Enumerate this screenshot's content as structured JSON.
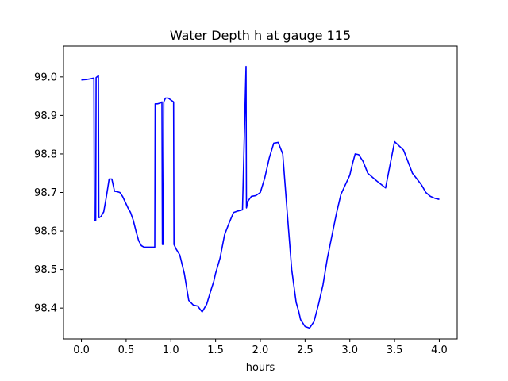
{
  "chart_data": {
    "type": "line",
    "title": "Water Depth h at gauge 115",
    "xlabel": "hours",
    "ylabel": "",
    "xlim": [
      -0.2,
      4.2
    ],
    "ylim": [
      98.32,
      99.08
    ],
    "xticks": [
      0.0,
      0.5,
      1.0,
      1.5,
      2.0,
      2.5,
      3.0,
      3.5,
      4.0
    ],
    "xtick_labels": [
      "0.0",
      "0.5",
      "1.0",
      "1.5",
      "2.0",
      "2.5",
      "3.0",
      "3.5",
      "4.0"
    ],
    "yticks": [
      98.4,
      98.5,
      98.6,
      98.7,
      98.8,
      98.9,
      99.0
    ],
    "ytick_labels": [
      "98.4",
      "98.5",
      "98.6",
      "98.7",
      "98.8",
      "98.9",
      "99.0"
    ],
    "grid": false,
    "series": [
      {
        "color": "#0000ff",
        "x": [
          0.0,
          0.05,
          0.1,
          0.14,
          0.145,
          0.16,
          0.165,
          0.175,
          0.19,
          0.195,
          0.2,
          0.22,
          0.25,
          0.28,
          0.31,
          0.34,
          0.37,
          0.4,
          0.43,
          0.46,
          0.49,
          0.52,
          0.55,
          0.58,
          0.61,
          0.64,
          0.67,
          0.7,
          0.73,
          0.76,
          0.79,
          0.82,
          0.825,
          0.85,
          0.88,
          0.9,
          0.905,
          0.915,
          0.92,
          0.94,
          0.97,
          1.0,
          1.03,
          1.035,
          1.06,
          1.1,
          1.15,
          1.2,
          1.25,
          1.3,
          1.35,
          1.4,
          1.45,
          1.48,
          1.5,
          1.55,
          1.6,
          1.65,
          1.7,
          1.75,
          1.8,
          1.84,
          1.845,
          1.85,
          1.855,
          1.87,
          1.9,
          1.95,
          2.0,
          2.05,
          2.1,
          2.15,
          2.2,
          2.25,
          2.3,
          2.35,
          2.4,
          2.43,
          2.45,
          2.5,
          2.55,
          2.6,
          2.65,
          2.7,
          2.75,
          2.8,
          2.85,
          2.9,
          2.95,
          3.0,
          3.03,
          3.06,
          3.1,
          3.15,
          3.2,
          3.3,
          3.4,
          3.5,
          3.6,
          3.7,
          3.75,
          3.8,
          3.82,
          3.85,
          3.9,
          3.95,
          4.0
        ],
        "y": [
          98.992,
          98.993,
          98.995,
          98.997,
          98.628,
          98.628,
          98.998,
          99.0,
          99.003,
          98.635,
          98.635,
          98.638,
          98.65,
          98.69,
          98.735,
          98.735,
          98.703,
          98.702,
          98.7,
          98.69,
          98.675,
          98.66,
          98.648,
          98.628,
          98.6,
          98.575,
          98.562,
          98.558,
          98.558,
          98.558,
          98.558,
          98.558,
          98.93,
          98.93,
          98.932,
          98.935,
          98.565,
          98.565,
          98.935,
          98.945,
          98.945,
          98.94,
          98.935,
          98.565,
          98.553,
          98.538,
          98.49,
          98.42,
          98.408,
          98.405,
          98.39,
          98.41,
          98.448,
          98.47,
          98.49,
          98.53,
          98.59,
          98.62,
          98.648,
          98.652,
          98.655,
          99.027,
          98.66,
          98.665,
          98.675,
          98.68,
          98.69,
          98.692,
          98.7,
          98.738,
          98.79,
          98.828,
          98.83,
          98.8,
          98.65,
          98.5,
          98.415,
          98.39,
          98.37,
          98.352,
          98.348,
          98.365,
          98.41,
          98.46,
          98.53,
          98.588,
          98.645,
          98.695,
          98.72,
          98.745,
          98.775,
          98.8,
          98.798,
          98.78,
          98.75,
          98.73,
          98.712,
          98.832,
          98.81,
          98.75,
          98.735,
          98.72,
          98.712,
          98.7,
          98.69,
          98.685,
          98.682
        ]
      }
    ]
  }
}
